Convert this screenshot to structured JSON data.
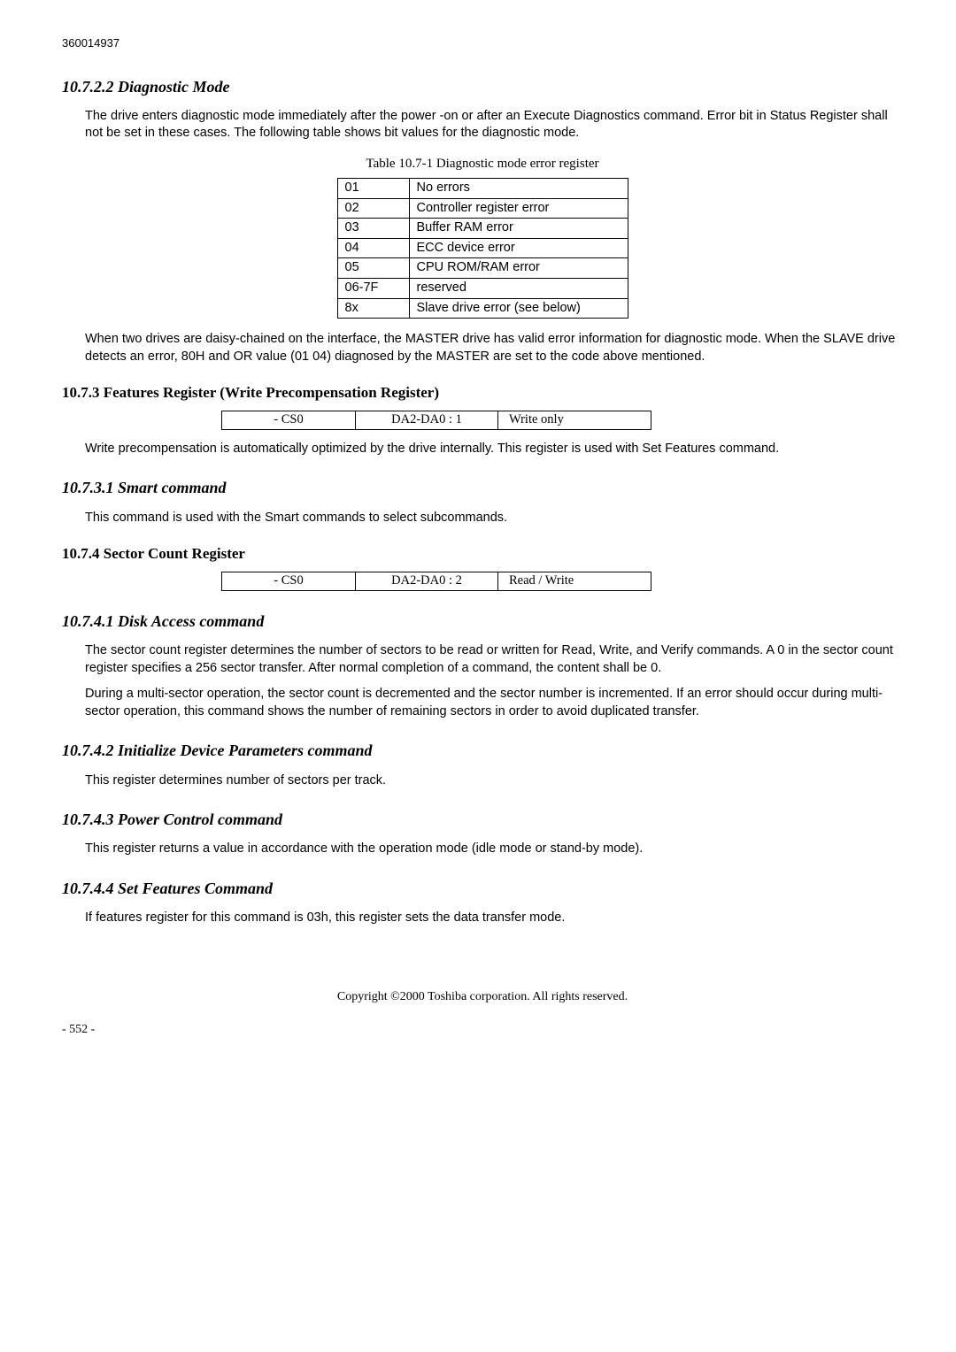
{
  "header": {
    "doc_id": "360014937"
  },
  "s1": {
    "heading": "10.7.2.2  Diagnostic Mode",
    "p1": "The drive enters diagnostic mode immediately after the power -on or after an Execute Diagnostics command. Error bit in Status Register shall not be set in these cases. The following table shows bit values for the diagnostic mode.",
    "table_caption": "Table 10.7-1 Diagnostic mode error register",
    "rows": [
      {
        "code": "01",
        "desc": "No errors"
      },
      {
        "code": "02",
        "desc": "Controller register error"
      },
      {
        "code": "03",
        "desc": "Buffer RAM error"
      },
      {
        "code": "04",
        "desc": "ECC device error"
      },
      {
        "code": "05",
        "desc": "CPU ROM/RAM error"
      },
      {
        "code": "06-7F",
        "desc": "reserved"
      },
      {
        "code": "8x",
        "desc": "Slave drive error (see below)"
      }
    ],
    "p2": "When two drives are daisy-chained on the interface, the MASTER drive has valid error information for diagnostic mode.   When the SLAVE drive detects an error, 80H and OR value (01   04) diagnosed by the MASTER are set to the code above mentioned."
  },
  "s2": {
    "heading": "10.7.3  Features Register (Write Precompensation Register)",
    "reg": {
      "c1": "- CS0",
      "c2": "DA2-DA0 : 1",
      "c3": "Write only"
    },
    "p1": "Write precompensation is automatically optimized by the drive internally.    This register is used with Set Features command."
  },
  "s3": {
    "heading": "10.7.3.1  Smart command",
    "p1": "This command is used with the Smart commands to select subcommands."
  },
  "s4": {
    "heading": "10.7.4  Sector Count Register",
    "reg": {
      "c1": "- CS0",
      "c2": "DA2-DA0 : 2",
      "c3": "Read / Write"
    }
  },
  "s5": {
    "heading": "10.7.4.1  Disk Access command",
    "p1": "The sector count register determines the number of sectors to be read or written for Read, Write, and Verify commands.    A 0 in the sector count register specifies a 256 sector transfer.    After normal completion of a command, the content shall be 0.",
    "p2": "During a multi-sector operation, the sector count is decremented and the sector number is incremented.    If an error should occur during multi-sector operation, this command shows the number of remaining sectors in order to avoid duplicated transfer."
  },
  "s6": {
    "heading": "10.7.4.2  Initialize Device Parameters command",
    "p1": "This register determines number of sectors per track."
  },
  "s7": {
    "heading": "10.7.4.3  Power Control command",
    "p1": "This register returns a value in accordance with the operation mode (idle mode or stand-by mode)."
  },
  "s8": {
    "heading": "10.7.4.4  Set Features Command",
    "p1": "If features register for this command is 03h, this register sets the data transfer mode."
  },
  "footer": {
    "copyright": "Copyright ©2000 Toshiba corporation. All rights reserved.",
    "page": "- 552 -"
  }
}
